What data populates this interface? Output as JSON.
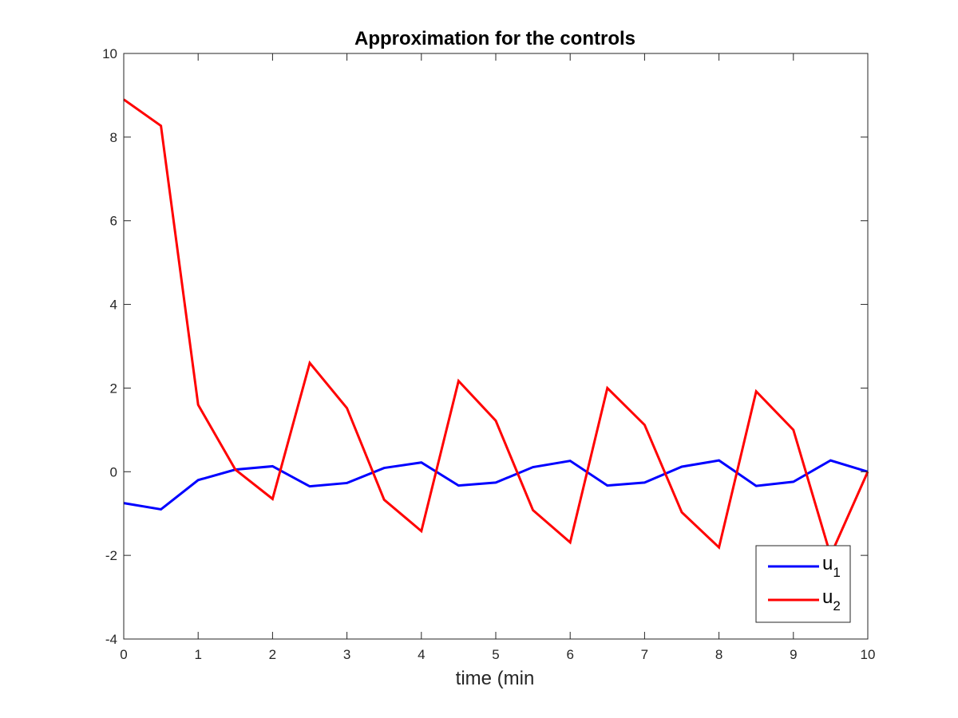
{
  "chart_data": {
    "type": "line",
    "title": "Approximation for the controls",
    "xlabel": "time (min",
    "ylabel": "",
    "xlim": [
      0,
      10
    ],
    "ylim": [
      -4,
      10
    ],
    "xticks": [
      "0",
      "1",
      "2",
      "3",
      "4",
      "5",
      "6",
      "7",
      "8",
      "9",
      "10"
    ],
    "yticks": [
      "-4",
      "-2",
      "0",
      "2",
      "4",
      "6",
      "8",
      "10"
    ],
    "grid": false,
    "legend_position": "bottom-right",
    "x": [
      0,
      0.5,
      1,
      1.5,
      2,
      2.5,
      3,
      3.5,
      4,
      4.5,
      5,
      5.5,
      6,
      6.5,
      7,
      7.5,
      8,
      8.5,
      9,
      9.5,
      10
    ],
    "series": [
      {
        "name_base": "u",
        "name_sub": "1",
        "color": "#0000ff",
        "values": [
          -0.75,
          -0.9,
          -0.2,
          0.05,
          0.13,
          -0.35,
          -0.27,
          0.09,
          0.22,
          -0.33,
          -0.26,
          0.11,
          0.26,
          -0.33,
          -0.26,
          0.12,
          0.27,
          -0.34,
          -0.24,
          0.27,
          0.0
        ]
      },
      {
        "name_base": "u",
        "name_sub": "2",
        "color": "#ff0000",
        "values": [
          8.9,
          8.27,
          1.6,
          0.05,
          -0.65,
          2.6,
          1.52,
          -0.67,
          -1.42,
          2.17,
          1.22,
          -0.92,
          -1.69,
          2.0,
          1.12,
          -0.97,
          -1.81,
          1.92,
          1.0,
          -2.0,
          0.0
        ]
      }
    ]
  }
}
